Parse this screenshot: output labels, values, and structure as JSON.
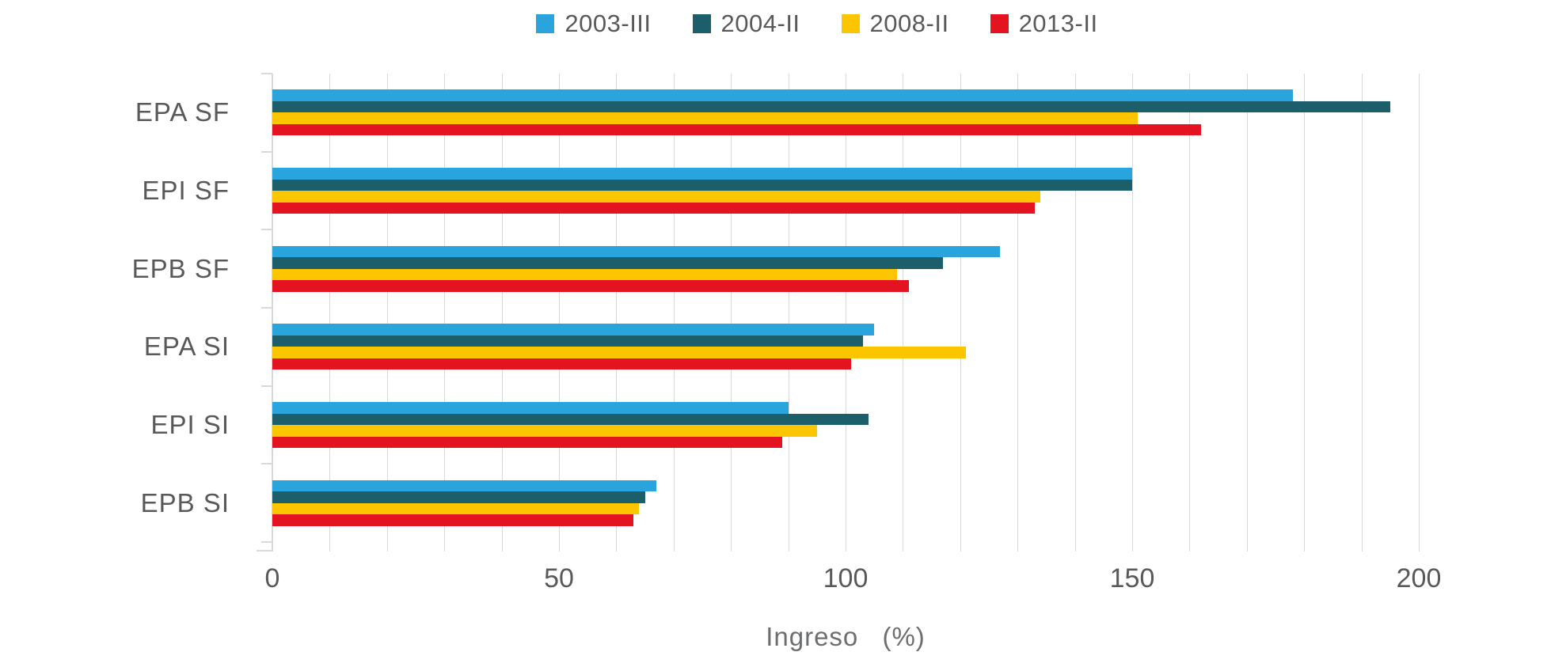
{
  "chart_data": {
    "type": "bar",
    "orientation": "horizontal",
    "xlabel": "Ingreso (%)",
    "xlim": [
      0,
      200
    ],
    "xticks": [
      "0",
      "50",
      "100",
      "150",
      "200"
    ],
    "xtick_values": [
      0,
      50,
      100,
      150,
      200
    ],
    "gridline_interval": 10,
    "grid_on": true,
    "legend_position": "top",
    "categories": [
      "EPA SF",
      "EPI SF",
      "EPB SF",
      "EPA SI",
      "EPI SI",
      "EPB SI"
    ],
    "series": [
      {
        "name": "2003-III",
        "color": "#29A4DC",
        "values": [
          178,
          150,
          127,
          105,
          90,
          67
        ]
      },
      {
        "name": "2004-II",
        "color": "#1C5F6B",
        "values": [
          195,
          150,
          117,
          103,
          104,
          65
        ]
      },
      {
        "name": "2008-II",
        "color": "#FBC600",
        "values": [
          151,
          134,
          109,
          121,
          95,
          64
        ]
      },
      {
        "name": "2013-II",
        "color": "#E3131F",
        "values": [
          162,
          133,
          111,
          101,
          89,
          63
        ]
      }
    ],
    "colors": {
      "grid": "#D9D9D9",
      "axis": "#D9D9D9",
      "text": "#58595B"
    }
  }
}
